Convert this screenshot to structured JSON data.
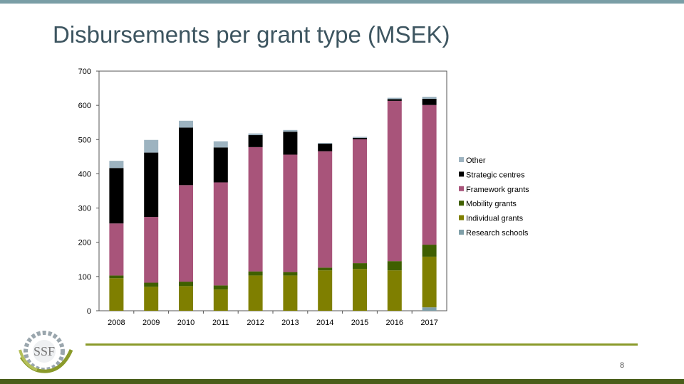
{
  "slide": {
    "title": "Disbursements per grant type (MSEK)",
    "page_number": "8"
  },
  "logo": {
    "text": "SSF",
    "icon": "ssf-logo-icon"
  },
  "colors": {
    "top_bar": "#7a9ea6",
    "bottom_bar": "#4a5e1a",
    "rule": "#8a9a2a"
  },
  "chart_data": {
    "type": "bar",
    "stacked": true,
    "categories": [
      "2008",
      "2009",
      "2010",
      "2011",
      "2012",
      "2013",
      "2014",
      "2015",
      "2016",
      "2017"
    ],
    "ylim": [
      0,
      700
    ],
    "yticks": [
      0,
      100,
      200,
      300,
      400,
      500,
      600,
      700
    ],
    "grid": false,
    "legend_position": "right",
    "series": [
      {
        "name": "Research schools",
        "color": "#7f9fa8",
        "values": [
          0,
          0,
          0,
          0,
          0,
          0,
          0,
          0,
          0,
          10
        ]
      },
      {
        "name": "Individual grants",
        "color": "#7f7f00",
        "values": [
          95,
          70,
          72,
          62,
          103,
          103,
          118,
          122,
          118,
          148
        ]
      },
      {
        "name": "Mobility grants",
        "color": "#3f5f00",
        "values": [
          8,
          12,
          13,
          12,
          12,
          10,
          8,
          17,
          27,
          35
        ]
      },
      {
        "name": "Framework grants",
        "color": "#a8547a",
        "values": [
          152,
          192,
          282,
          301,
          363,
          343,
          340,
          362,
          468,
          408
        ]
      },
      {
        "name": "Strategic centres",
        "color": "#000000",
        "values": [
          162,
          188,
          168,
          102,
          35,
          67,
          22,
          4,
          5,
          18
        ]
      },
      {
        "name": "Other",
        "color": "#9db3c0",
        "values": [
          21,
          37,
          20,
          18,
          5,
          5,
          2,
          3,
          4,
          6
        ]
      }
    ]
  }
}
